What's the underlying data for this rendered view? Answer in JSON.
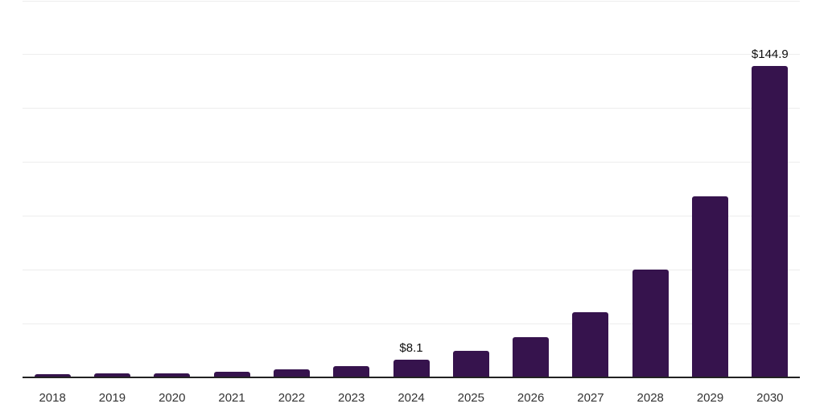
{
  "chart_data": {
    "type": "bar",
    "title": "",
    "xlabel": "",
    "ylabel": "",
    "categories": [
      "2018",
      "2019",
      "2020",
      "2021",
      "2022",
      "2023",
      "2024",
      "2025",
      "2026",
      "2027",
      "2028",
      "2029",
      "2030"
    ],
    "values": [
      1.5,
      1.8,
      1.7,
      2.5,
      3.7,
      5.4,
      8.1,
      12.2,
      18.8,
      30.4,
      50.0,
      84.0,
      144.9
    ],
    "data_labels": [
      {
        "category": "2024",
        "text": "$8.1"
      },
      {
        "category": "2030",
        "text": "$144.9"
      }
    ],
    "ylim": [
      0,
      175
    ],
    "gridline_step": 25,
    "grid": true,
    "legend_position": "none",
    "bar_width_fraction": 0.61,
    "colors": {
      "bar": "#36134d",
      "gridline": "#ededed",
      "axis_line": "#222222",
      "tick_label": "#333333",
      "data_label": "#0f0f0f",
      "background": "#ffffff"
    }
  }
}
